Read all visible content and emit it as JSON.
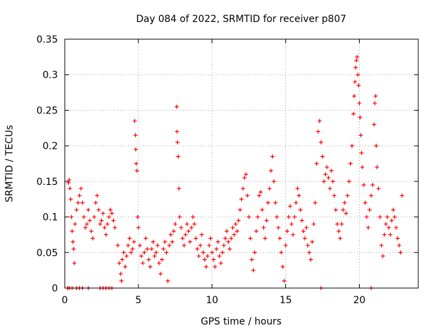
{
  "chart_data": {
    "type": "scatter",
    "title": "Day 084 of 2022, SRMTID for receiver p807",
    "xlabel": "GPS time / hours",
    "ylabel": "SRMTID / TECUs",
    "xlim": [
      0,
      24
    ],
    "ylim": [
      0,
      0.35
    ],
    "xticks": [
      0,
      5,
      10,
      15,
      20
    ],
    "xtick_labels": [
      "0",
      "5",
      "10",
      "15",
      "20"
    ],
    "yticks": [
      0,
      0.05,
      0.1,
      0.15,
      0.2,
      0.25,
      0.3,
      0.35
    ],
    "ytick_labels": [
      "0",
      "0.05",
      "0.1",
      "0.15",
      "0.2",
      "0.25",
      "0.3",
      "0.35"
    ],
    "grid": true,
    "marker": "+",
    "color": "#ff0000",
    "series": [
      {
        "name": "SRMTID",
        "points": [
          [
            0.2,
            0
          ],
          [
            0.3,
            0
          ],
          [
            0.5,
            0
          ],
          [
            0.8,
            0
          ],
          [
            1.0,
            0
          ],
          [
            1.2,
            0
          ],
          [
            1.6,
            0
          ],
          [
            2.4,
            0
          ],
          [
            2.6,
            0
          ],
          [
            2.8,
            0
          ],
          [
            3.0,
            0
          ],
          [
            3.2,
            0
          ],
          [
            17.4,
            0
          ],
          [
            20.8,
            0
          ],
          [
            0.25,
            0.148
          ],
          [
            0.3,
            0.152
          ],
          [
            0.35,
            0.14
          ],
          [
            0.4,
            0.125
          ],
          [
            0.45,
            0.1
          ],
          [
            0.5,
            0.08
          ],
          [
            0.55,
            0.065
          ],
          [
            0.6,
            0.055
          ],
          [
            0.65,
            0.035
          ],
          [
            0.7,
            0.09
          ],
          [
            0.8,
            0.11
          ],
          [
            0.9,
            0.12
          ],
          [
            1.0,
            0.13
          ],
          [
            1.1,
            0.14
          ],
          [
            1.2,
            0.12
          ],
          [
            1.3,
            0.1
          ],
          [
            1.4,
            0.085
          ],
          [
            1.5,
            0.09
          ],
          [
            1.6,
            0.11
          ],
          [
            1.7,
            0.095
          ],
          [
            1.8,
            0.08
          ],
          [
            1.9,
            0.07
          ],
          [
            2.0,
            0.1
          ],
          [
            2.1,
            0.12
          ],
          [
            2.2,
            0.13
          ],
          [
            2.3,
            0.11
          ],
          [
            2.4,
            0.09
          ],
          [
            2.5,
            0.095
          ],
          [
            2.6,
            0.105
          ],
          [
            2.7,
            0.085
          ],
          [
            2.8,
            0.075
          ],
          [
            2.9,
            0.09
          ],
          [
            3.0,
            0.1
          ],
          [
            3.1,
            0.11
          ],
          [
            3.2,
            0.105
          ],
          [
            3.3,
            0.095
          ],
          [
            3.4,
            0.085
          ],
          [
            3.6,
            0.06
          ],
          [
            3.7,
            0.035
          ],
          [
            3.8,
            0.02
          ],
          [
            3.85,
            0.01
          ],
          [
            3.9,
            0.04
          ],
          [
            4.0,
            0.05
          ],
          [
            4.1,
            0.03
          ],
          [
            4.2,
            0.045
          ],
          [
            4.3,
            0.06
          ],
          [
            4.4,
            0.07
          ],
          [
            4.5,
            0.05
          ],
          [
            4.6,
            0.055
          ],
          [
            4.7,
            0.065
          ],
          [
            4.75,
            0.235
          ],
          [
            4.8,
            0.215
          ],
          [
            4.82,
            0.195
          ],
          [
            4.85,
            0.175
          ],
          [
            4.9,
            0.165
          ],
          [
            4.95,
            0.1
          ],
          [
            5.0,
            0.085
          ],
          [
            5.1,
            0.06
          ],
          [
            5.2,
            0.045
          ],
          [
            5.3,
            0.035
          ],
          [
            5.4,
            0.05
          ],
          [
            5.5,
            0.07
          ],
          [
            5.6,
            0.055
          ],
          [
            5.7,
            0.04
          ],
          [
            5.8,
            0.03
          ],
          [
            5.9,
            0.055
          ],
          [
            6.0,
            0.065
          ],
          [
            6.1,
            0.045
          ],
          [
            6.2,
            0.05
          ],
          [
            6.3,
            0.06
          ],
          [
            6.4,
            0.035
          ],
          [
            6.5,
            0.02
          ],
          [
            6.6,
            0.04
          ],
          [
            6.7,
            0.055
          ],
          [
            6.8,
            0.065
          ],
          [
            6.9,
            0.05
          ],
          [
            7.0,
            0.01
          ],
          [
            7.1,
            0.06
          ],
          [
            7.2,
            0.075
          ],
          [
            7.3,
            0.065
          ],
          [
            7.4,
            0.08
          ],
          [
            7.5,
            0.09
          ],
          [
            7.6,
            0.255
          ],
          [
            7.62,
            0.22
          ],
          [
            7.65,
            0.205
          ],
          [
            7.7,
            0.185
          ],
          [
            7.75,
            0.14
          ],
          [
            7.8,
            0.1
          ],
          [
            7.9,
            0.085
          ],
          [
            8.0,
            0.07
          ],
          [
            8.1,
            0.06
          ],
          [
            8.2,
            0.075
          ],
          [
            8.3,
            0.09
          ],
          [
            8.4,
            0.08
          ],
          [
            8.5,
            0.065
          ],
          [
            8.6,
            0.085
          ],
          [
            8.7,
            0.1
          ],
          [
            8.8,
            0.09
          ],
          [
            8.9,
            0.07
          ],
          [
            9.0,
            0.055
          ],
          [
            9.1,
            0.045
          ],
          [
            9.2,
            0.06
          ],
          [
            9.3,
            0.075
          ],
          [
            9.4,
            0.05
          ],
          [
            9.5,
            0.04
          ],
          [
            9.6,
            0.03
          ],
          [
            9.7,
            0.045
          ],
          [
            9.8,
            0.06
          ],
          [
            9.9,
            0.07
          ],
          [
            10.0,
            0.05
          ],
          [
            10.1,
            0.04
          ],
          [
            10.2,
            0.03
          ],
          [
            10.3,
            0.055
          ],
          [
            10.4,
            0.065
          ],
          [
            10.5,
            0.045
          ],
          [
            10.6,
            0.035
          ],
          [
            10.7,
            0.05
          ],
          [
            10.8,
            0.06
          ],
          [
            10.9,
            0.07
          ],
          [
            11.0,
            0.08
          ],
          [
            11.1,
            0.065
          ],
          [
            11.2,
            0.055
          ],
          [
            11.3,
            0.07
          ],
          [
            11.4,
            0.085
          ],
          [
            11.5,
            0.075
          ],
          [
            11.6,
            0.09
          ],
          [
            11.7,
            0.08
          ],
          [
            11.8,
            0.095
          ],
          [
            11.9,
            0.11
          ],
          [
            12.0,
            0.125
          ],
          [
            12.1,
            0.14
          ],
          [
            12.2,
            0.155
          ],
          [
            12.3,
            0.16
          ],
          [
            12.4,
            0.13
          ],
          [
            12.5,
            0.1
          ],
          [
            12.6,
            0.07
          ],
          [
            12.7,
            0.04
          ],
          [
            12.8,
            0.025
          ],
          [
            12.9,
            0.05
          ],
          [
            13.0,
            0.08
          ],
          [
            13.1,
            0.1
          ],
          [
            13.2,
            0.13
          ],
          [
            13.3,
            0.135
          ],
          [
            13.4,
            0.11
          ],
          [
            13.5,
            0.085
          ],
          [
            13.6,
            0.07
          ],
          [
            13.7,
            0.095
          ],
          [
            13.8,
            0.12
          ],
          [
            13.9,
            0.14
          ],
          [
            14.0,
            0.165
          ],
          [
            14.1,
            0.185
          ],
          [
            14.2,
            0.15
          ],
          [
            14.3,
            0.12
          ],
          [
            14.4,
            0.1
          ],
          [
            14.5,
            0.085
          ],
          [
            14.6,
            0.07
          ],
          [
            14.7,
            0.05
          ],
          [
            14.8,
            0.03
          ],
          [
            14.9,
            0.01
          ],
          [
            15.0,
            0.06
          ],
          [
            15.1,
            0.08
          ],
          [
            15.2,
            0.1
          ],
          [
            15.3,
            0.115
          ],
          [
            15.4,
            0.09
          ],
          [
            15.5,
            0.075
          ],
          [
            15.6,
            0.1
          ],
          [
            15.7,
            0.12
          ],
          [
            15.8,
            0.14
          ],
          [
            15.9,
            0.13
          ],
          [
            16.0,
            0.11
          ],
          [
            16.1,
            0.095
          ],
          [
            16.2,
            0.08
          ],
          [
            16.3,
            0.07
          ],
          [
            16.4,
            0.085
          ],
          [
            16.5,
            0.06
          ],
          [
            16.6,
            0.05
          ],
          [
            16.7,
            0.04
          ],
          [
            16.8,
            0.065
          ],
          [
            16.9,
            0.09
          ],
          [
            17.0,
            0.12
          ],
          [
            17.1,
            0.175
          ],
          [
            17.2,
            0.22
          ],
          [
            17.3,
            0.235
          ],
          [
            17.4,
            0.205
          ],
          [
            17.5,
            0.185
          ],
          [
            17.6,
            0.15
          ],
          [
            17.7,
            0.16
          ],
          [
            17.8,
            0.17
          ],
          [
            17.9,
            0.155
          ],
          [
            18.0,
            0.14
          ],
          [
            18.1,
            0.165
          ],
          [
            18.2,
            0.15
          ],
          [
            18.3,
            0.13
          ],
          [
            18.4,
            0.11
          ],
          [
            18.5,
            0.09
          ],
          [
            18.6,
            0.08
          ],
          [
            18.7,
            0.07
          ],
          [
            18.8,
            0.09
          ],
          [
            18.9,
            0.11
          ],
          [
            19.0,
            0.12
          ],
          [
            19.1,
            0.105
          ],
          [
            19.2,
            0.13
          ],
          [
            19.3,
            0.15
          ],
          [
            19.4,
            0.175
          ],
          [
            19.5,
            0.2
          ],
          [
            19.6,
            0.245
          ],
          [
            19.65,
            0.27
          ],
          [
            19.7,
            0.29
          ],
          [
            19.75,
            0.31
          ],
          [
            19.8,
            0.32
          ],
          [
            19.85,
            0.325
          ],
          [
            19.9,
            0.3
          ],
          [
            19.95,
            0.285
          ],
          [
            20.0,
            0.26
          ],
          [
            20.05,
            0.24
          ],
          [
            20.1,
            0.215
          ],
          [
            20.15,
            0.19
          ],
          [
            20.2,
            0.17
          ],
          [
            20.3,
            0.145
          ],
          [
            20.4,
            0.12
          ],
          [
            20.5,
            0.1
          ],
          [
            20.6,
            0.085
          ],
          [
            20.7,
            0.11
          ],
          [
            20.8,
            0.13
          ],
          [
            20.9,
            0.145
          ],
          [
            21.0,
            0.23
          ],
          [
            21.05,
            0.26
          ],
          [
            21.1,
            0.27
          ],
          [
            21.15,
            0.2
          ],
          [
            21.2,
            0.17
          ],
          [
            21.3,
            0.14
          ],
          [
            21.4,
            0.1
          ],
          [
            21.5,
            0.06
          ],
          [
            21.6,
            0.045
          ],
          [
            21.7,
            0.075
          ],
          [
            21.8,
            0.09
          ],
          [
            21.9,
            0.1
          ],
          [
            22.0,
            0.085
          ],
          [
            22.1,
            0.075
          ],
          [
            22.2,
            0.095
          ],
          [
            22.3,
            0.11
          ],
          [
            22.4,
            0.1
          ],
          [
            22.5,
            0.085
          ],
          [
            22.6,
            0.07
          ],
          [
            22.7,
            0.06
          ],
          [
            22.8,
            0.05
          ],
          [
            22.9,
            0.13
          ]
        ]
      }
    ]
  }
}
